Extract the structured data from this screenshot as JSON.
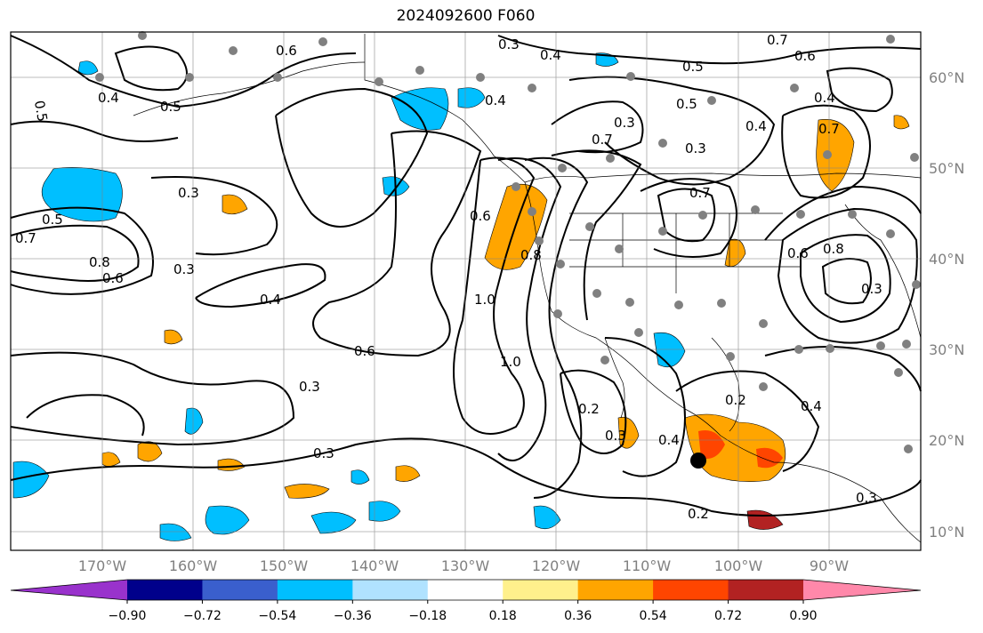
{
  "title": "2024092600 F060",
  "map": {
    "lat_labels": [
      "60°N",
      "50°N",
      "40°N",
      "30°N",
      "20°N",
      "10°N"
    ],
    "lon_labels": [
      "170°W",
      "160°W",
      "150°W",
      "140°W",
      "130°W",
      "120°W",
      "110°W",
      "100°W",
      "90°W"
    ],
    "contour_labels": [
      "0.3",
      "0.4",
      "0.5",
      "0.6",
      "0.7",
      "0.8",
      "1.0",
      "0.2"
    ],
    "colors": {
      "land_outline": "#000000",
      "grid": "#808080",
      "station_dot": "#808080"
    }
  },
  "colorbar": {
    "ticks": [
      "−0.90",
      "−0.72",
      "−0.54",
      "−0.36",
      "−0.18",
      "0.18",
      "0.36",
      "0.54",
      "0.72",
      "0.90"
    ],
    "colors": [
      "#9932cc",
      "#00008b",
      "#3a5fcd",
      "#00bfff",
      "#b0e2ff",
      "#ffffff",
      "#fff08c",
      "#ffa500",
      "#ff4500",
      "#b22222",
      "#ff88aa"
    ]
  }
}
